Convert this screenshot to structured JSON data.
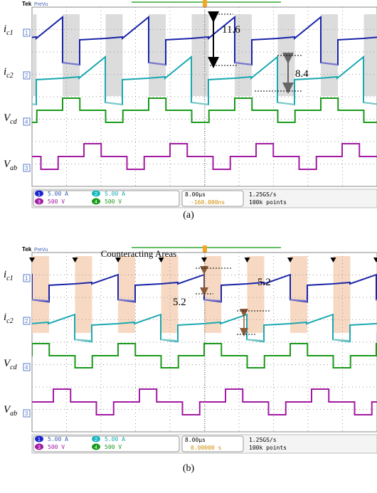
{
  "figures": [
    {
      "header": {
        "brand": "Tek",
        "mode": "PreVu"
      },
      "channel_labels": [
        {
          "symbol": "i",
          "sub": "c1",
          "num": "1"
        },
        {
          "symbol": "i",
          "sub": "c2",
          "num": "2"
        },
        {
          "symbol": "V",
          "sub": "cd",
          "num": "4"
        },
        {
          "symbol": "V",
          "sub": "ab",
          "num": "3"
        }
      ],
      "annotations": [
        "11.6",
        "8.4"
      ],
      "status": {
        "channels": [
          {
            "num": "1",
            "scale": "5.00 A"
          },
          {
            "num": "2",
            "scale": "5.00 A"
          },
          {
            "num": "3",
            "scale": "500 V"
          },
          {
            "num": "4",
            "scale": "500 V"
          }
        ],
        "timebase": "8.00µs",
        "trigger": "-160.000ns",
        "rate": "1.25GS/s",
        "points": "100k points"
      },
      "caption": "(a)"
    },
    {
      "header": {
        "brand": "Tek",
        "mode": "PreVu"
      },
      "area_label": "Counteracting Areas",
      "channel_labels": [
        {
          "symbol": "i",
          "sub": "c1",
          "num": "1"
        },
        {
          "symbol": "i",
          "sub": "c2",
          "num": "2"
        },
        {
          "symbol": "V",
          "sub": "cd",
          "num": "4"
        },
        {
          "symbol": "V",
          "sub": "ab",
          "num": "3"
        }
      ],
      "annotations": [
        "5.2",
        "5.2"
      ],
      "status": {
        "channels": [
          {
            "num": "1",
            "scale": "5.00 A"
          },
          {
            "num": "2",
            "scale": "5.00 A"
          },
          {
            "num": "3",
            "scale": "500 V"
          },
          {
            "num": "4",
            "scale": "500 V"
          }
        ],
        "timebase": "8.00µs",
        "trigger": "0.00000 s",
        "rate": "1.25GS/s",
        "points": "100k points"
      },
      "caption": "(b)"
    }
  ]
}
